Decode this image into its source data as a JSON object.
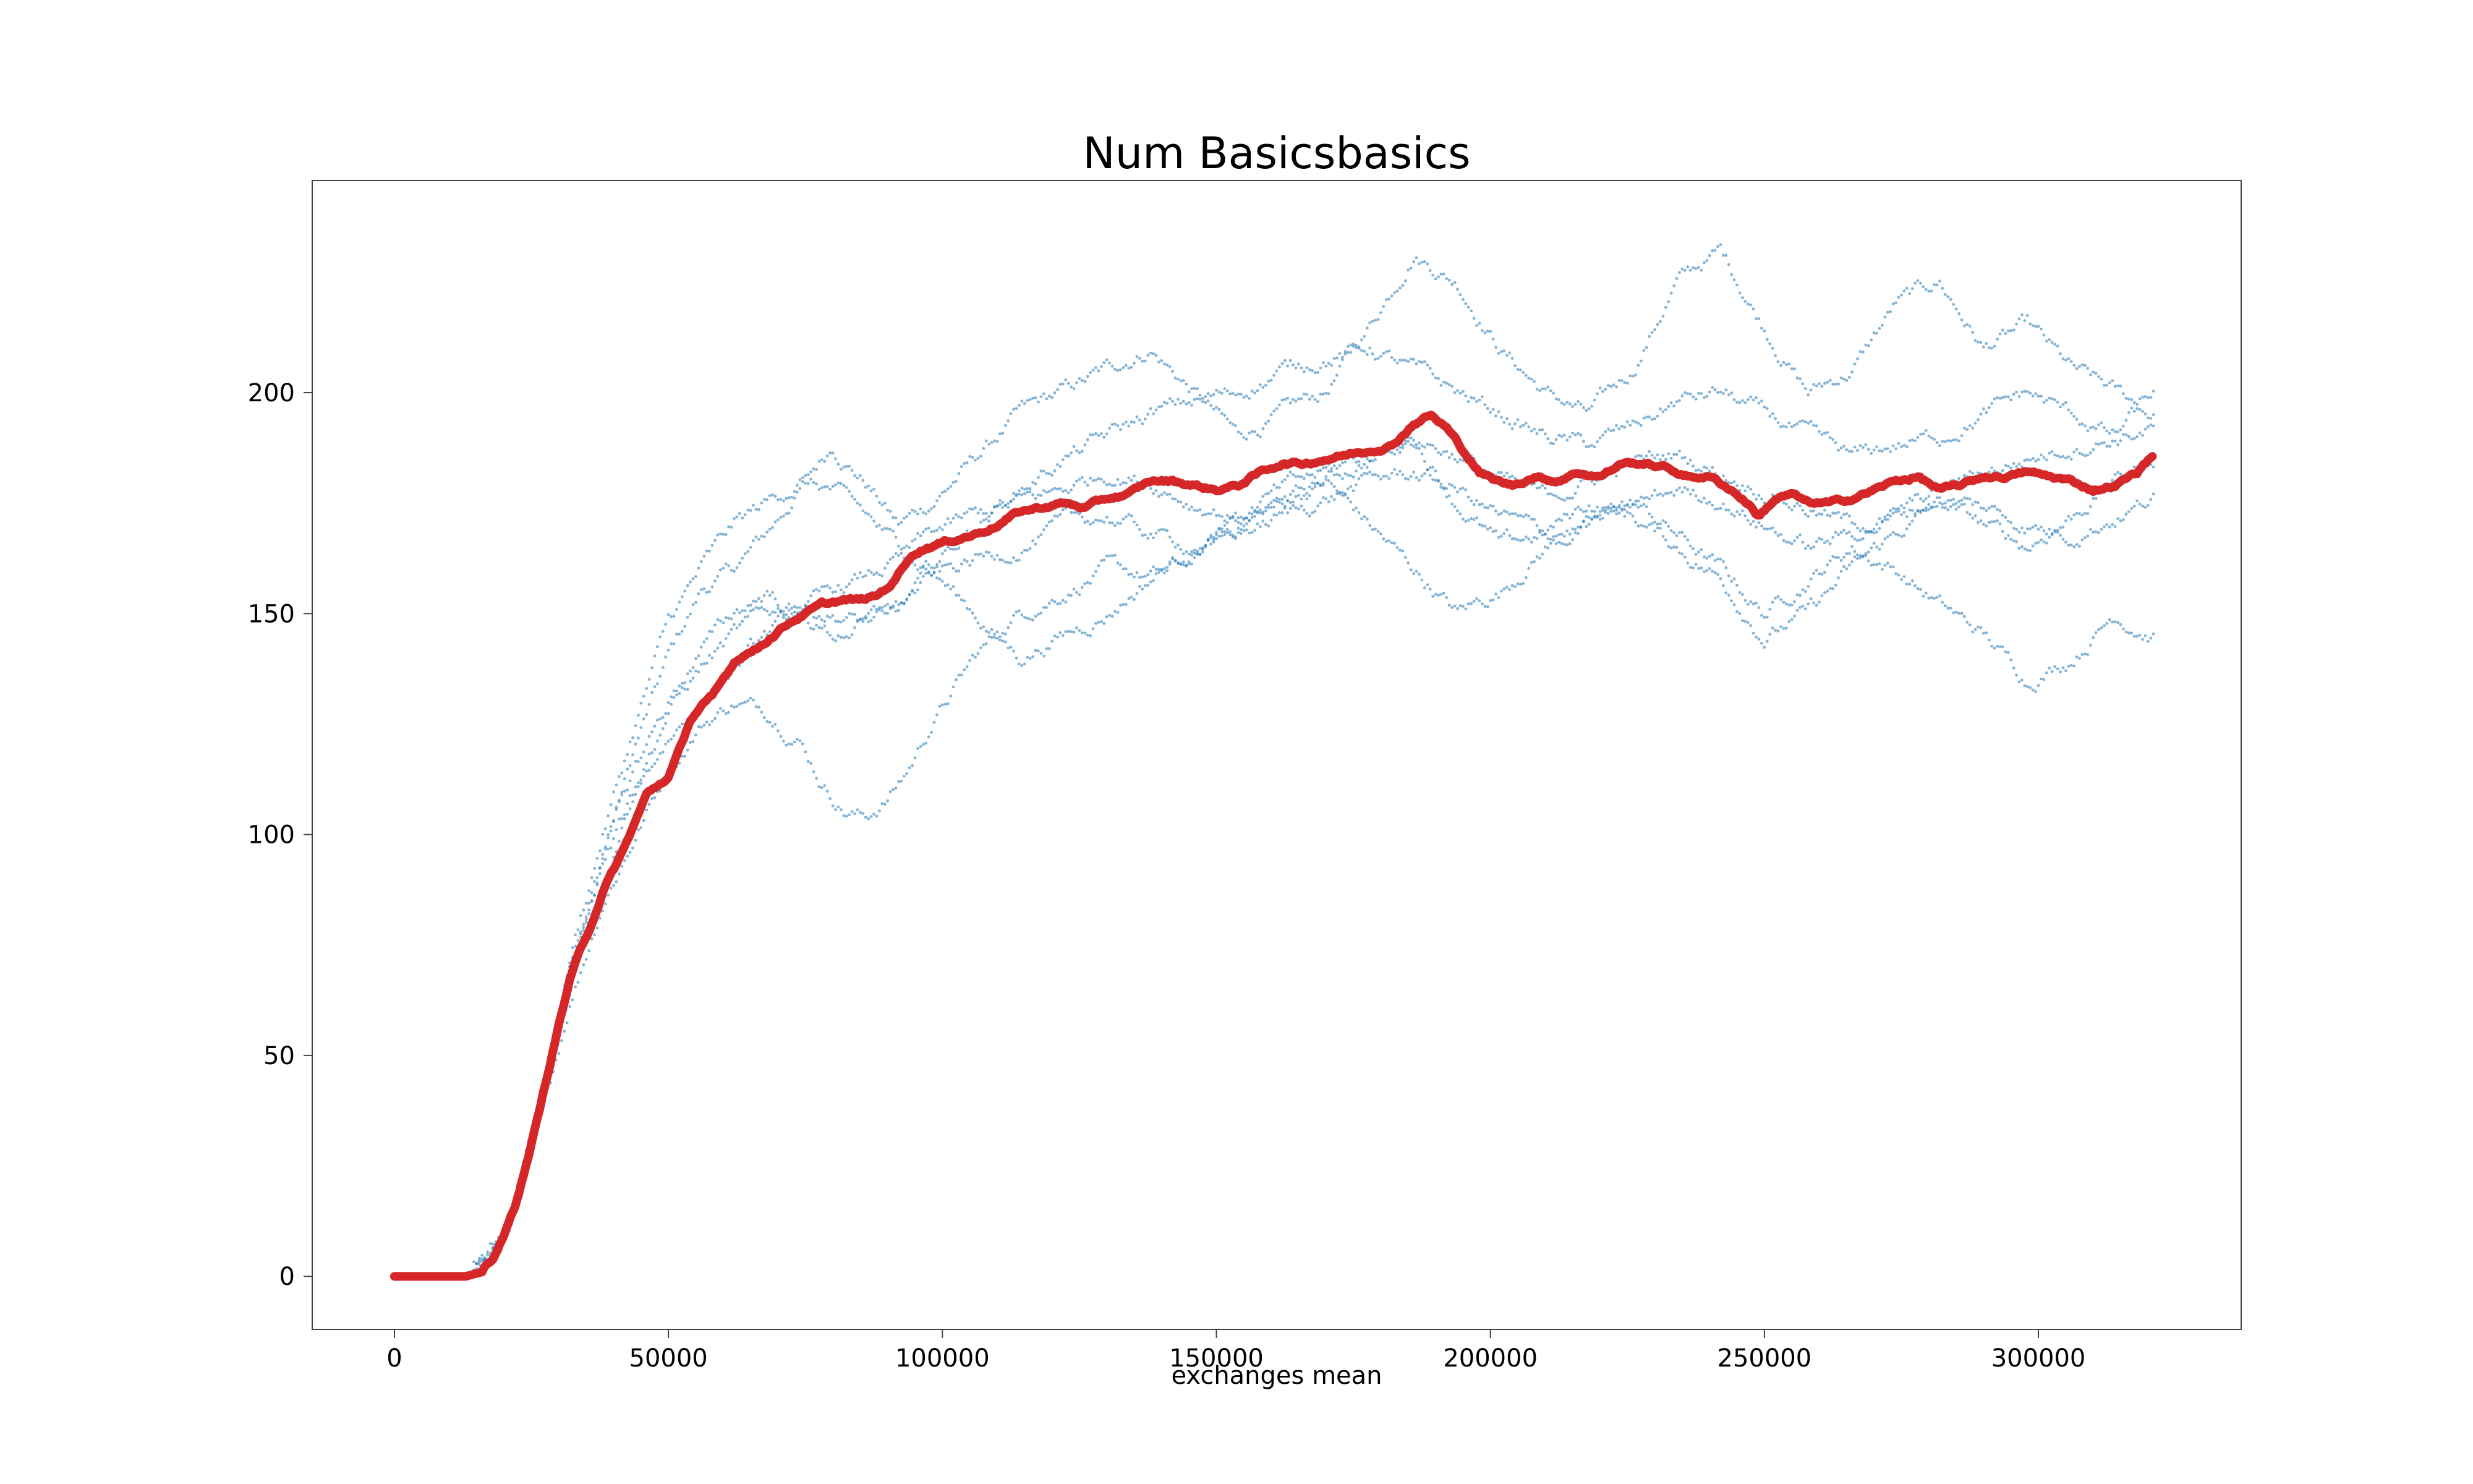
{
  "chart_data": {
    "type": "line",
    "title": "Num Basicsbasics",
    "xlabel": "exchanges mean",
    "ylabel": "",
    "xlim": [
      -15000,
      337000
    ],
    "ylim": [
      -12,
      248
    ],
    "xticks": [
      0,
      50000,
      100000,
      150000,
      200000,
      250000,
      300000
    ],
    "yticks": [
      0,
      50,
      100,
      150,
      200
    ],
    "xtick_labels": [
      "0",
      "50000",
      "100000",
      "150000",
      "200000",
      "250000",
      "300000"
    ],
    "ytick_labels": [
      "0",
      "50",
      "100",
      "150",
      "200"
    ],
    "grid": false,
    "legend": "none",
    "colors": {
      "mean": "#d62728",
      "runs": "#1f77b4"
    },
    "series": [
      {
        "role": "mean",
        "style": "thick-line",
        "x": [
          0,
          13000,
          16000,
          18000,
          20000,
          22000,
          24000,
          26000,
          28000,
          30000,
          32000,
          34000,
          36000,
          38000,
          40000,
          42000,
          44000,
          46000,
          48000,
          50000,
          52000,
          54000,
          56000,
          58000,
          60000,
          62000,
          64000,
          66000,
          68000,
          70000,
          72000,
          75000,
          78000,
          82000,
          85000,
          88000,
          91000,
          94000,
          97000,
          100000,
          103000,
          106000,
          110000,
          114000,
          118000,
          122000,
          126000,
          130000,
          134000,
          138000,
          142000,
          146000,
          150000,
          154000,
          158000,
          162000,
          166000,
          170000,
          174000,
          178000,
          182000,
          186000,
          189000,
          192000,
          195000,
          198000,
          201000,
          204000,
          208000,
          212000,
          216000,
          220000,
          224000,
          228000,
          232000,
          236000,
          240000,
          244000,
          247000,
          249000,
          252000,
          255000,
          258000,
          262000,
          266000,
          270000,
          274000,
          278000,
          282000,
          286000,
          290000,
          294000,
          298000,
          302000,
          306000,
          310000,
          314000,
          318000,
          321000
        ],
        "y": [
          0,
          0,
          1,
          4,
          9,
          16,
          25,
          35,
          46,
          57,
          67,
          74,
          80,
          87,
          92,
          97,
          103,
          109,
          111,
          113,
          119,
          126,
          129,
          131,
          135,
          139,
          141,
          142,
          144,
          146,
          148,
          150,
          152,
          153,
          153,
          154,
          157,
          163,
          165,
          166,
          167,
          168,
          170,
          173,
          174,
          175,
          174,
          176,
          177,
          180,
          180,
          179,
          178,
          179,
          182,
          184,
          184,
          185,
          186,
          187,
          188,
          193,
          195,
          192,
          187,
          182,
          180,
          179,
          181,
          180,
          182,
          181,
          184,
          184,
          183,
          181,
          181,
          178,
          175,
          172,
          176,
          177,
          175,
          175,
          176,
          178,
          180,
          181,
          178,
          179,
          181,
          181,
          182,
          181,
          180,
          178,
          179,
          182,
          186
        ]
      },
      {
        "role": "run",
        "style": "dots",
        "x": [
          0,
          14000,
          20000,
          26000,
          32000,
          38000,
          44000,
          50000,
          56000,
          62000,
          68000,
          74000,
          80000,
          86000,
          92000,
          98000,
          106000,
          114000,
          122000,
          130000,
          138000,
          146000,
          154000,
          162000,
          170000,
          178000,
          186000,
          194000,
          202000,
          210000,
          218000,
          226000,
          234000,
          242000,
          250000,
          258000,
          266000,
          274000,
          282000,
          290000,
          298000,
          306000,
          314000,
          321000
        ],
        "y": [
          0,
          0,
          9,
          33,
          70,
          95,
          120,
          140,
          155,
          160,
          168,
          178,
          188,
          180,
          170,
          175,
          185,
          195,
          200,
          205,
          210,
          200,
          190,
          195,
          200,
          215,
          232,
          225,
          210,
          200,
          195,
          205,
          225,
          232,
          215,
          200,
          205,
          220,
          225,
          210,
          215,
          205,
          200,
          195
        ]
      },
      {
        "role": "run",
        "style": "dots",
        "x": [
          0,
          14000,
          20000,
          26000,
          32000,
          38000,
          44000,
          50000,
          56000,
          62000,
          68000,
          74000,
          78000,
          82000,
          86000,
          90000,
          94000,
          98000,
          106000,
          114000,
          122000,
          130000,
          138000,
          146000,
          154000,
          162000,
          170000,
          178000,
          186000,
          194000,
          202000,
          210000,
          218000,
          226000,
          234000,
          242000,
          250000,
          258000,
          266000,
          274000,
          282000,
          290000,
          298000,
          306000,
          314000,
          321000
        ],
        "y": [
          0,
          0,
          8,
          30,
          62,
          85,
          100,
          115,
          125,
          130,
          128,
          122,
          112,
          106,
          104,
          108,
          115,
          125,
          140,
          150,
          155,
          160,
          158,
          162,
          170,
          175,
          180,
          170,
          160,
          150,
          155,
          165,
          170,
          175,
          168,
          160,
          150,
          158,
          165,
          160,
          152,
          145,
          135,
          140,
          150,
          145
        ]
      },
      {
        "role": "run",
        "style": "dots",
        "x": [
          0,
          14000,
          20000,
          26000,
          32000,
          38000,
          44000,
          50000,
          56000,
          62000,
          68000,
          74000,
          80000,
          86000,
          92000,
          98000,
          106000,
          114000,
          122000,
          130000,
          138000,
          146000,
          154000,
          162000,
          170000,
          178000,
          186000,
          194000,
          202000,
          210000,
          218000,
          226000,
          234000,
          242000,
          250000,
          258000,
          266000,
          274000,
          282000,
          290000,
          298000,
          306000,
          314000,
          321000
        ],
        "y": [
          0,
          0,
          10,
          36,
          72,
          100,
          125,
          148,
          160,
          170,
          175,
          180,
          178,
          172,
          165,
          160,
          150,
          140,
          145,
          150,
          158,
          165,
          170,
          175,
          180,
          185,
          190,
          175,
          165,
          168,
          175,
          172,
          165,
          158,
          145,
          150,
          160,
          168,
          175,
          170,
          165,
          172,
          180,
          185
        ]
      },
      {
        "role": "run",
        "style": "dots",
        "x": [
          0,
          14000,
          20000,
          26000,
          32000,
          38000,
          44000,
          50000,
          56000,
          62000,
          68000,
          74000,
          80000,
          86000,
          92000,
          98000,
          106000,
          114000,
          122000,
          130000,
          138000,
          146000,
          154000,
          162000,
          170000,
          178000,
          186000,
          194000,
          202000,
          210000,
          218000,
          226000,
          234000,
          242000,
          250000,
          258000,
          266000,
          274000,
          282000,
          290000,
          298000,
          306000,
          314000,
          321000
        ],
        "y": [
          0,
          0,
          8,
          32,
          66,
          90,
          112,
          128,
          138,
          145,
          150,
          152,
          150,
          148,
          150,
          160,
          170,
          178,
          185,
          190,
          195,
          198,
          200,
          205,
          208,
          210,
          205,
          200,
          195,
          190,
          188,
          192,
          198,
          200,
          195,
          190,
          185,
          188,
          190,
          195,
          200,
          195,
          190,
          200
        ]
      },
      {
        "role": "run",
        "style": "dots",
        "x": [
          0,
          14000,
          20000,
          26000,
          32000,
          38000,
          44000,
          50000,
          56000,
          62000,
          68000,
          74000,
          80000,
          86000,
          92000,
          98000,
          106000,
          114000,
          122000,
          130000,
          138000,
          146000,
          154000,
          162000,
          170000,
          178000,
          186000,
          194000,
          202000,
          210000,
          218000,
          226000,
          234000,
          242000,
          250000,
          258000,
          266000,
          274000,
          282000,
          290000,
          298000,
          306000,
          314000,
          321000
        ],
        "y": [
          0,
          0,
          9,
          34,
          68,
          92,
          110,
          122,
          130,
          138,
          145,
          150,
          155,
          158,
          162,
          168,
          172,
          175,
          178,
          182,
          180,
          175,
          172,
          178,
          182,
          186,
          190,
          186,
          180,
          176,
          180,
          184,
          186,
          182,
          178,
          174,
          170,
          172,
          178,
          182,
          185,
          188,
          190,
          192
        ]
      },
      {
        "role": "run",
        "style": "dots",
        "x": [
          0,
          14000,
          20000,
          26000,
          32000,
          38000,
          44000,
          50000,
          56000,
          62000,
          68000,
          74000,
          80000,
          86000,
          92000,
          98000,
          106000,
          114000,
          122000,
          130000,
          138000,
          146000,
          154000,
          162000,
          170000,
          178000,
          186000,
          194000,
          202000,
          210000,
          218000,
          226000,
          234000,
          242000,
          250000,
          258000,
          266000,
          274000,
          282000,
          290000,
          298000,
          306000,
          314000,
          321000
        ],
        "y": [
          0,
          0,
          10,
          35,
          70,
          95,
          115,
          130,
          142,
          150,
          155,
          150,
          145,
          148,
          152,
          158,
          162,
          165,
          170,
          172,
          168,
          165,
          168,
          172,
          176,
          180,
          182,
          178,
          172,
          168,
          170,
          174,
          178,
          176,
          170,
          165,
          168,
          172,
          176,
          174,
          170,
          168,
          172,
          176
        ]
      }
    ]
  }
}
